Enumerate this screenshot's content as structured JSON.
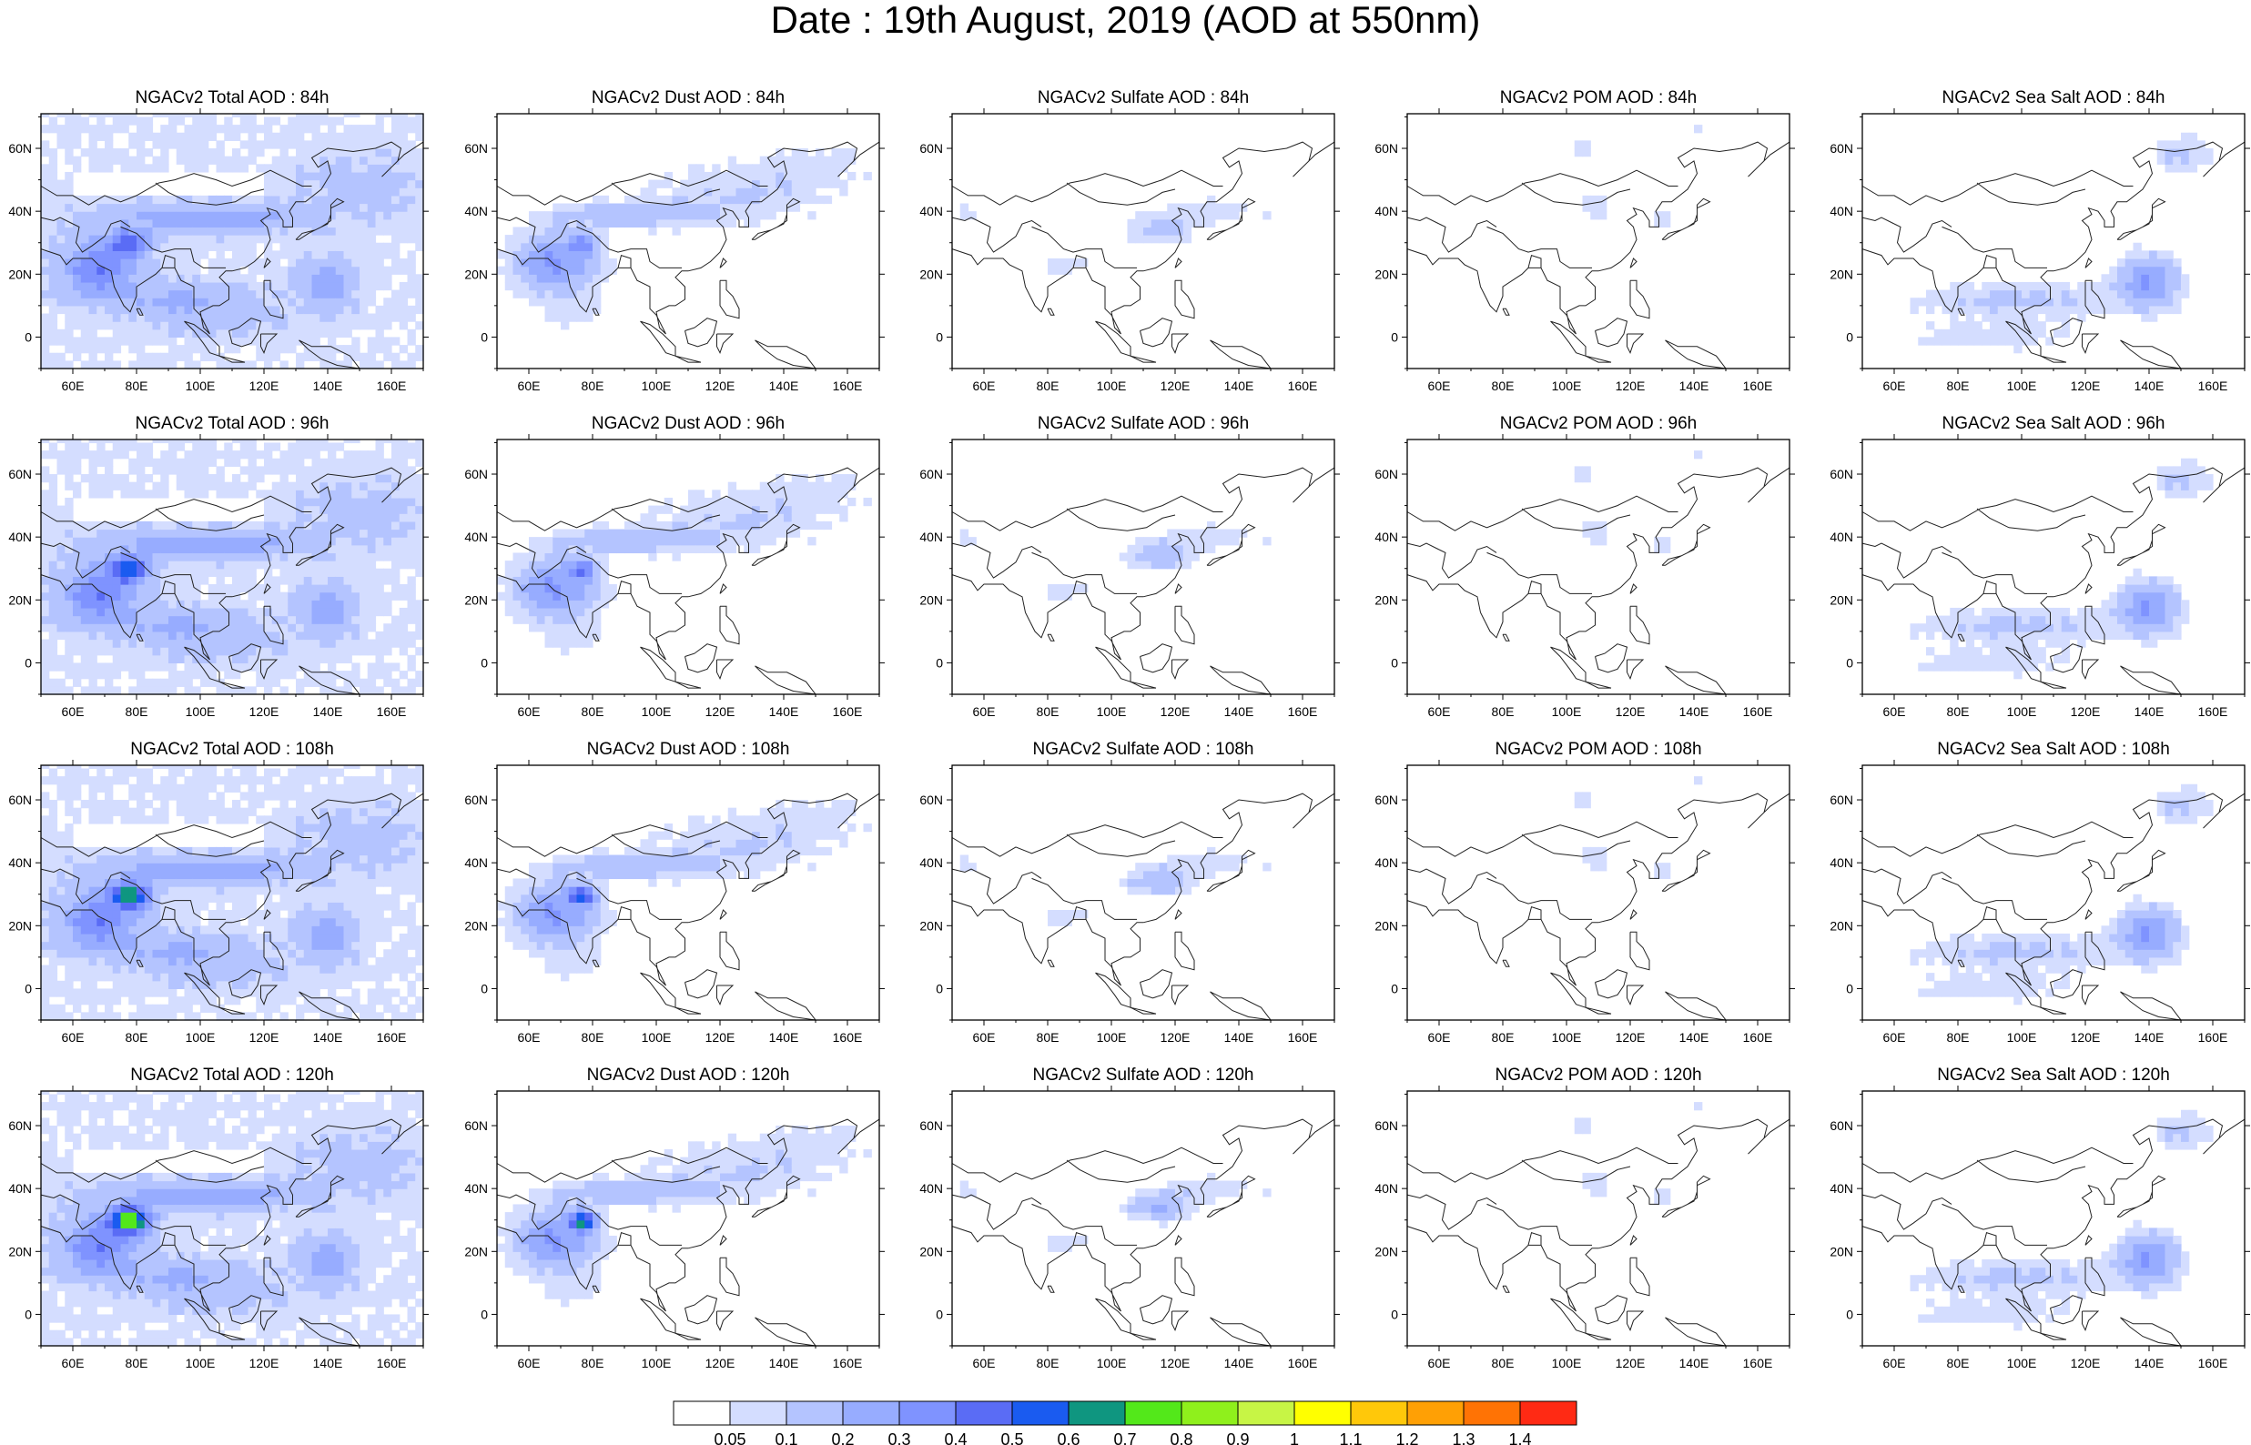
{
  "title": "Date : 19th August, 2019 (AOD at 550nm)",
  "lon_ticks": [
    "60E",
    "80E",
    "100E",
    "120E",
    "140E",
    "160E"
  ],
  "lat_ticks": [
    "60N",
    "40N",
    "20N",
    "0"
  ],
  "panels": [
    {
      "title": "NGACv2 Total AOD : 84h",
      "species": "total",
      "lead": 84
    },
    {
      "title": "NGACv2 Dust AOD : 84h",
      "species": "dust",
      "lead": 84
    },
    {
      "title": "NGACv2 Sulfate AOD : 84h",
      "species": "sulfate",
      "lead": 84
    },
    {
      "title": "NGACv2 POM AOD : 84h",
      "species": "pom",
      "lead": 84
    },
    {
      "title": "NGACv2 Sea Salt AOD : 84h",
      "species": "seasalt",
      "lead": 84
    },
    {
      "title": "NGACv2 Total AOD : 96h",
      "species": "total",
      "lead": 96
    },
    {
      "title": "NGACv2 Dust AOD : 96h",
      "species": "dust",
      "lead": 96
    },
    {
      "title": "NGACv2 Sulfate AOD : 96h",
      "species": "sulfate",
      "lead": 96
    },
    {
      "title": "NGACv2 POM AOD : 96h",
      "species": "pom",
      "lead": 96
    },
    {
      "title": "NGACv2 Sea Salt AOD : 96h",
      "species": "seasalt",
      "lead": 96
    },
    {
      "title": "NGACv2 Total AOD : 108h",
      "species": "total",
      "lead": 108
    },
    {
      "title": "NGACv2 Dust AOD : 108h",
      "species": "dust",
      "lead": 108
    },
    {
      "title": "NGACv2 Sulfate AOD : 108h",
      "species": "sulfate",
      "lead": 108
    },
    {
      "title": "NGACv2 POM AOD : 108h",
      "species": "pom",
      "lead": 108
    },
    {
      "title": "NGACv2 Sea Salt AOD : 108h",
      "species": "seasalt",
      "lead": 108
    },
    {
      "title": "NGACv2 Total AOD : 120h",
      "species": "total",
      "lead": 120
    },
    {
      "title": "NGACv2 Dust AOD : 120h",
      "species": "dust",
      "lead": 120
    },
    {
      "title": "NGACv2 Sulfate AOD : 120h",
      "species": "sulfate",
      "lead": 120
    },
    {
      "title": "NGACv2 POM AOD : 120h",
      "species": "pom",
      "lead": 120
    },
    {
      "title": "NGACv2 Sea Salt  AOD : 120h",
      "species": "seasalt",
      "lead": 120
    }
  ],
  "colorbar": {
    "labels": [
      "0.05",
      "0.1",
      "0.2",
      "0.3",
      "0.4",
      "0.5",
      "0.6",
      "0.7",
      "0.8",
      "0.9",
      "1",
      "1.1",
      "1.2",
      "1.3",
      "1.4"
    ],
    "colors": [
      "#ffffff",
      "#d4ddff",
      "#b4c4ff",
      "#97acff",
      "#7f93ff",
      "#5a6cf5",
      "#1a5bf0",
      "#0f9680",
      "#53e81a",
      "#8ff01c",
      "#c7f545",
      "#ffff00",
      "#ffc80a",
      "#ffa005",
      "#ff7305",
      "#ff2a14"
    ]
  }
}
